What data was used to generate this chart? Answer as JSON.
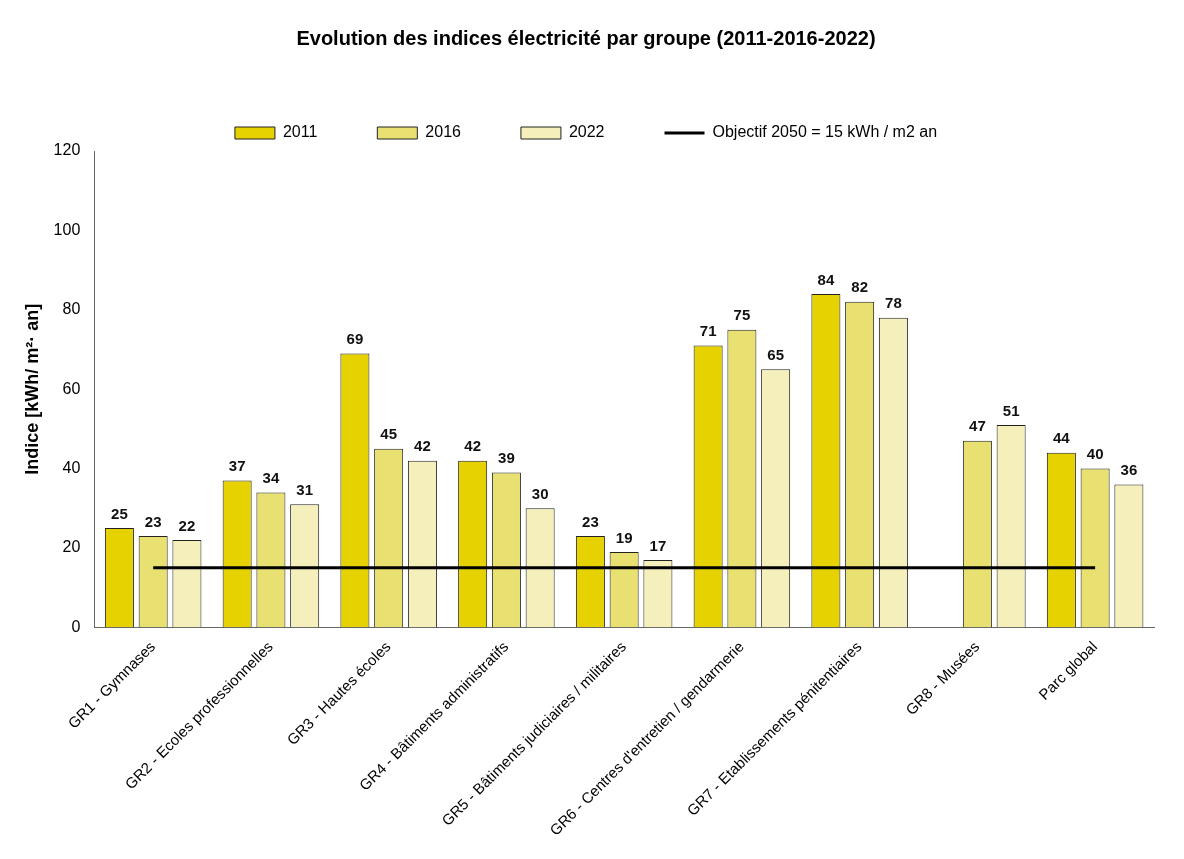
{
  "chart_data": {
    "type": "bar",
    "title": "Evolution des indices électricité par groupe (2011-2016-2022)",
    "ylabel": "Indice [kWh/ m²· an]",
    "categories": [
      "GR1 - Gymnases",
      "GR2 - Ecoles professionnelles",
      "GR3 - Hautes écoles",
      "GR4 - Bâtiments administratifs",
      "GR5 - Bâtiments judiciaires / militaires",
      "GR6 - Centres d'entretien / gendarmerie",
      "GR7 - Etablissements pénitentiaires",
      "GR8 - Musées",
      "Parc global"
    ],
    "series": [
      {
        "name": "2011",
        "color": "#e6d200",
        "values": [
          25,
          37,
          69,
          42,
          23,
          71,
          84,
          null,
          44
        ],
        "value_labels": [
          "25",
          "37",
          "69",
          "42",
          "23",
          "71",
          "84",
          null,
          "44"
        ]
      },
      {
        "name": "2016",
        "color": "#e8e070",
        "values": [
          23,
          34,
          45,
          39,
          19,
          75,
          82,
          47,
          40
        ],
        "value_labels": [
          "23",
          "34",
          "45",
          "39",
          "19",
          "75",
          "82",
          "47",
          "40"
        ]
      },
      {
        "name": "2022",
        "color": "#f5f0bb",
        "values": [
          22,
          31,
          42,
          30,
          17,
          65,
          78,
          51,
          36
        ],
        "value_labels": [
          "22",
          "31",
          "42",
          "30",
          "17",
          "65",
          "78",
          "51",
          "36"
        ]
      },
      {
        "name": "Objectif 2050 = 15 kWh / m2 an",
        "type": "line",
        "color": "#000000",
        "values": [
          15,
          15,
          15,
          15,
          15,
          15,
          15,
          15,
          15
        ]
      }
    ],
    "ylim": [
      0,
      120
    ],
    "yticks": [
      0,
      20,
      40,
      60,
      80,
      100,
      120
    ],
    "grid": false,
    "legend": "top",
    "marker": "none"
  }
}
